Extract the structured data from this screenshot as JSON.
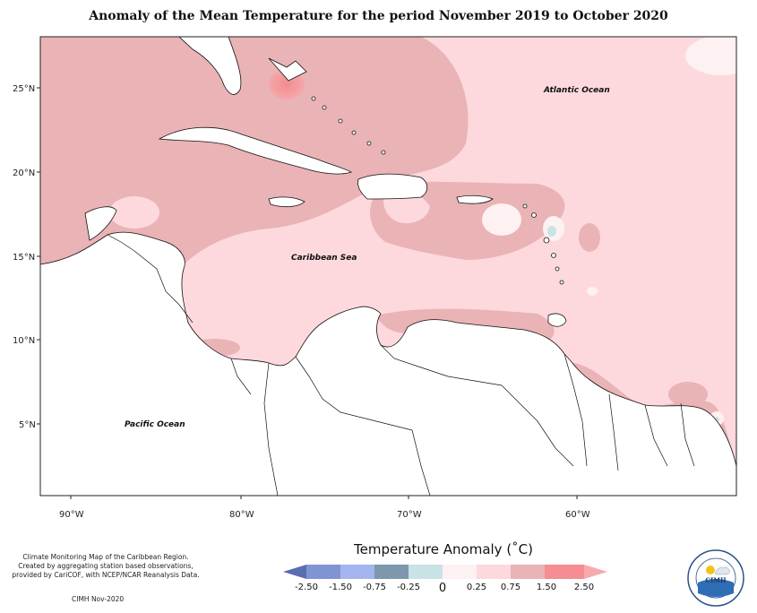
{
  "title": "Anomaly of the Mean Temperature for the period November 2019 to October 2020",
  "axes": {
    "lat_labels": [
      "25°N",
      "20°N",
      "15°N",
      "10°N",
      "5°N"
    ],
    "lon_labels": [
      "90°W",
      "80°W",
      "70°W",
      "60°W"
    ]
  },
  "regions": {
    "atlantic": "Atlantic Ocean",
    "caribbean": "Caribbean Sea",
    "pacific": "Pacific Ocean"
  },
  "legend": {
    "title": "Temperature Anomaly (˚C)",
    "ticks": [
      "-2.50",
      "-1.50",
      "-0.75",
      "-0.25",
      "0",
      "0.25",
      "0.75",
      "1.50",
      "2.50"
    ],
    "colors": [
      "#5a6db0",
      "#8093d2",
      "#a4b6f0",
      "#7d98ad",
      "#c9e2e6",
      "#fdf1f1",
      "#fdd9de",
      "#eab3b6",
      "#f58d92",
      "#f7a9ac"
    ]
  },
  "credits": {
    "line1": "Climate Monitoring Map of the Caribbean Region.",
    "line2": "Created by aggregating station based observations,",
    "line3": "provided by CariCOF, with NCEP/NCAR Reanalysis Data.",
    "date": "CIMH Nov-2020"
  },
  "logo": {
    "text": "CIMH"
  }
}
